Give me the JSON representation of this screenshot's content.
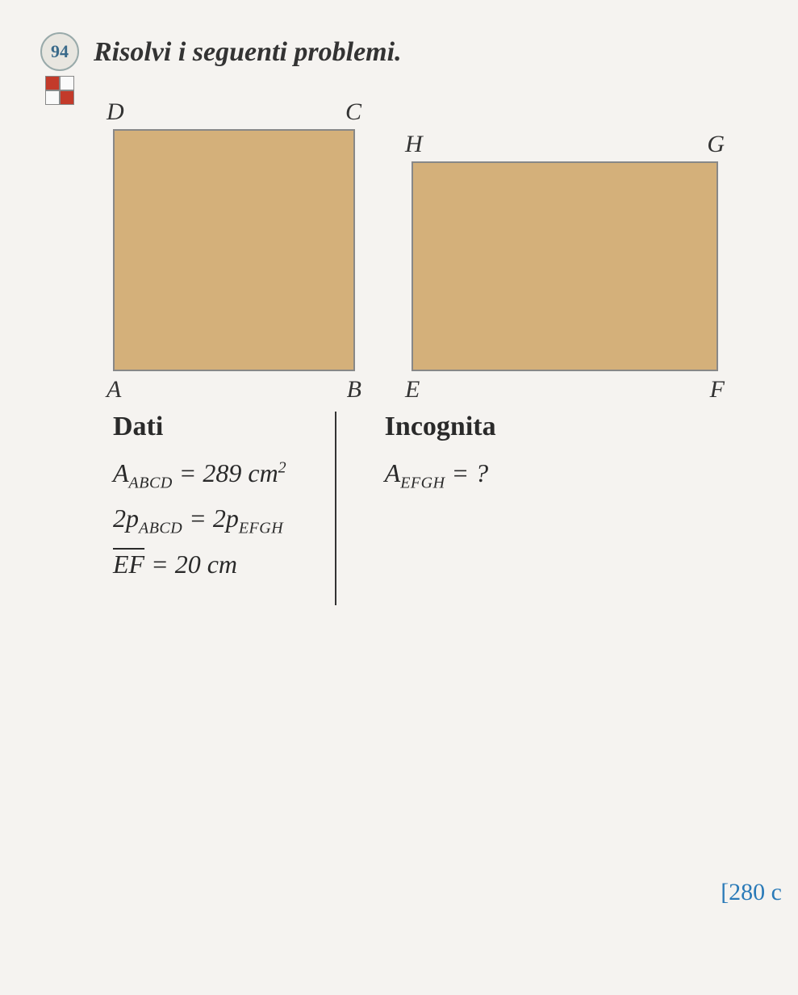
{
  "problem_number": "94",
  "instruction": "Risolvi i seguenti problemi.",
  "figures": {
    "square": {
      "fill_color": "#d4b07a",
      "border_color": "#888888",
      "vertices": {
        "tl": "D",
        "tr": "C",
        "bl": "A",
        "br": "B"
      }
    },
    "rectangle": {
      "fill_color": "#d4b07a",
      "border_color": "#888888",
      "vertices": {
        "tl": "H",
        "tr": "G",
        "bl": "E",
        "br": "F"
      }
    }
  },
  "dati": {
    "heading": "Dati",
    "line1": {
      "lhs_var": "A",
      "lhs_sub": "ABCD",
      "eq": "= 289 cm",
      "sup": "2"
    },
    "line2": {
      "lhs": "2p",
      "lhs_sub": "ABCD",
      "eq": "= 2p",
      "rhs_sub": "EFGH"
    },
    "line3": {
      "seg": "EF",
      "eq": "= 20 cm"
    }
  },
  "incognita": {
    "heading": "Incognita",
    "line1": {
      "lhs_var": "A",
      "lhs_sub": "EFGH",
      "eq": "= ?"
    }
  },
  "answer": "[280 c"
}
